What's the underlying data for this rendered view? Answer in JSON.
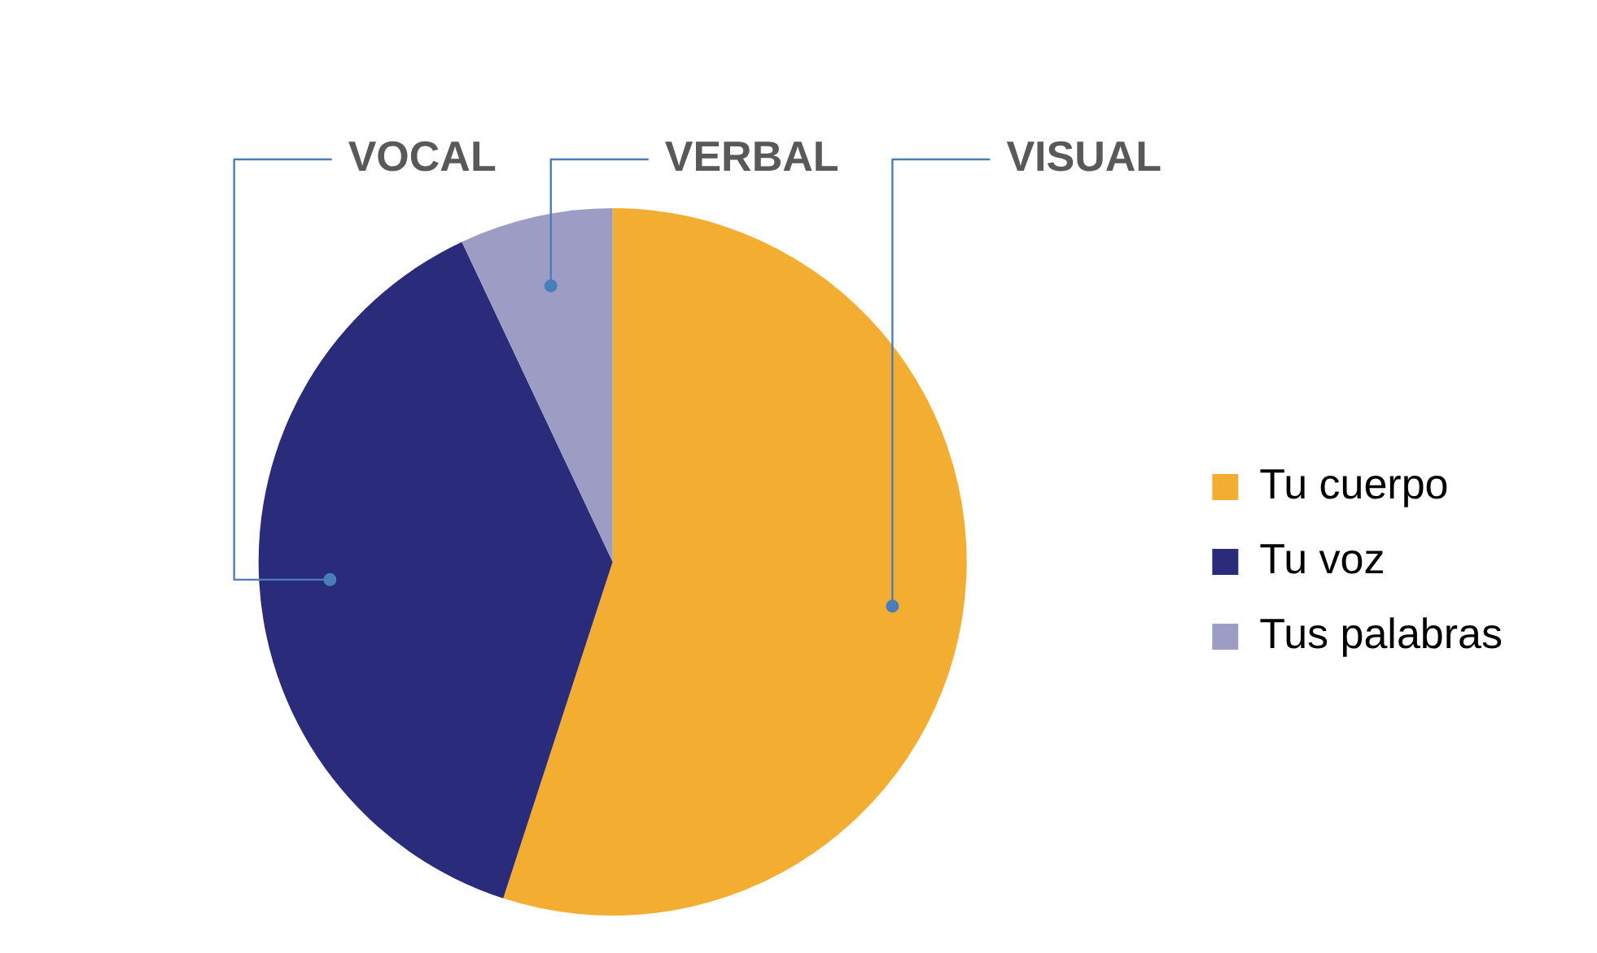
{
  "chart_data": {
    "type": "pie",
    "categories": [
      "Tu cuerpo",
      "Tu voz",
      "Tus palabras"
    ],
    "values": [
      55,
      38,
      7
    ],
    "colors": [
      "#f3ae32",
      "#2b2b7b",
      "#9d9cc4"
    ],
    "legend": "right",
    "annotations": [
      {
        "text": "VISUAL",
        "x": "Tu cuerpo"
      },
      {
        "text": "VOCAL",
        "x": "Tu voz"
      },
      {
        "text": "VERBAL",
        "x": "Tus palabras"
      }
    ]
  }
}
